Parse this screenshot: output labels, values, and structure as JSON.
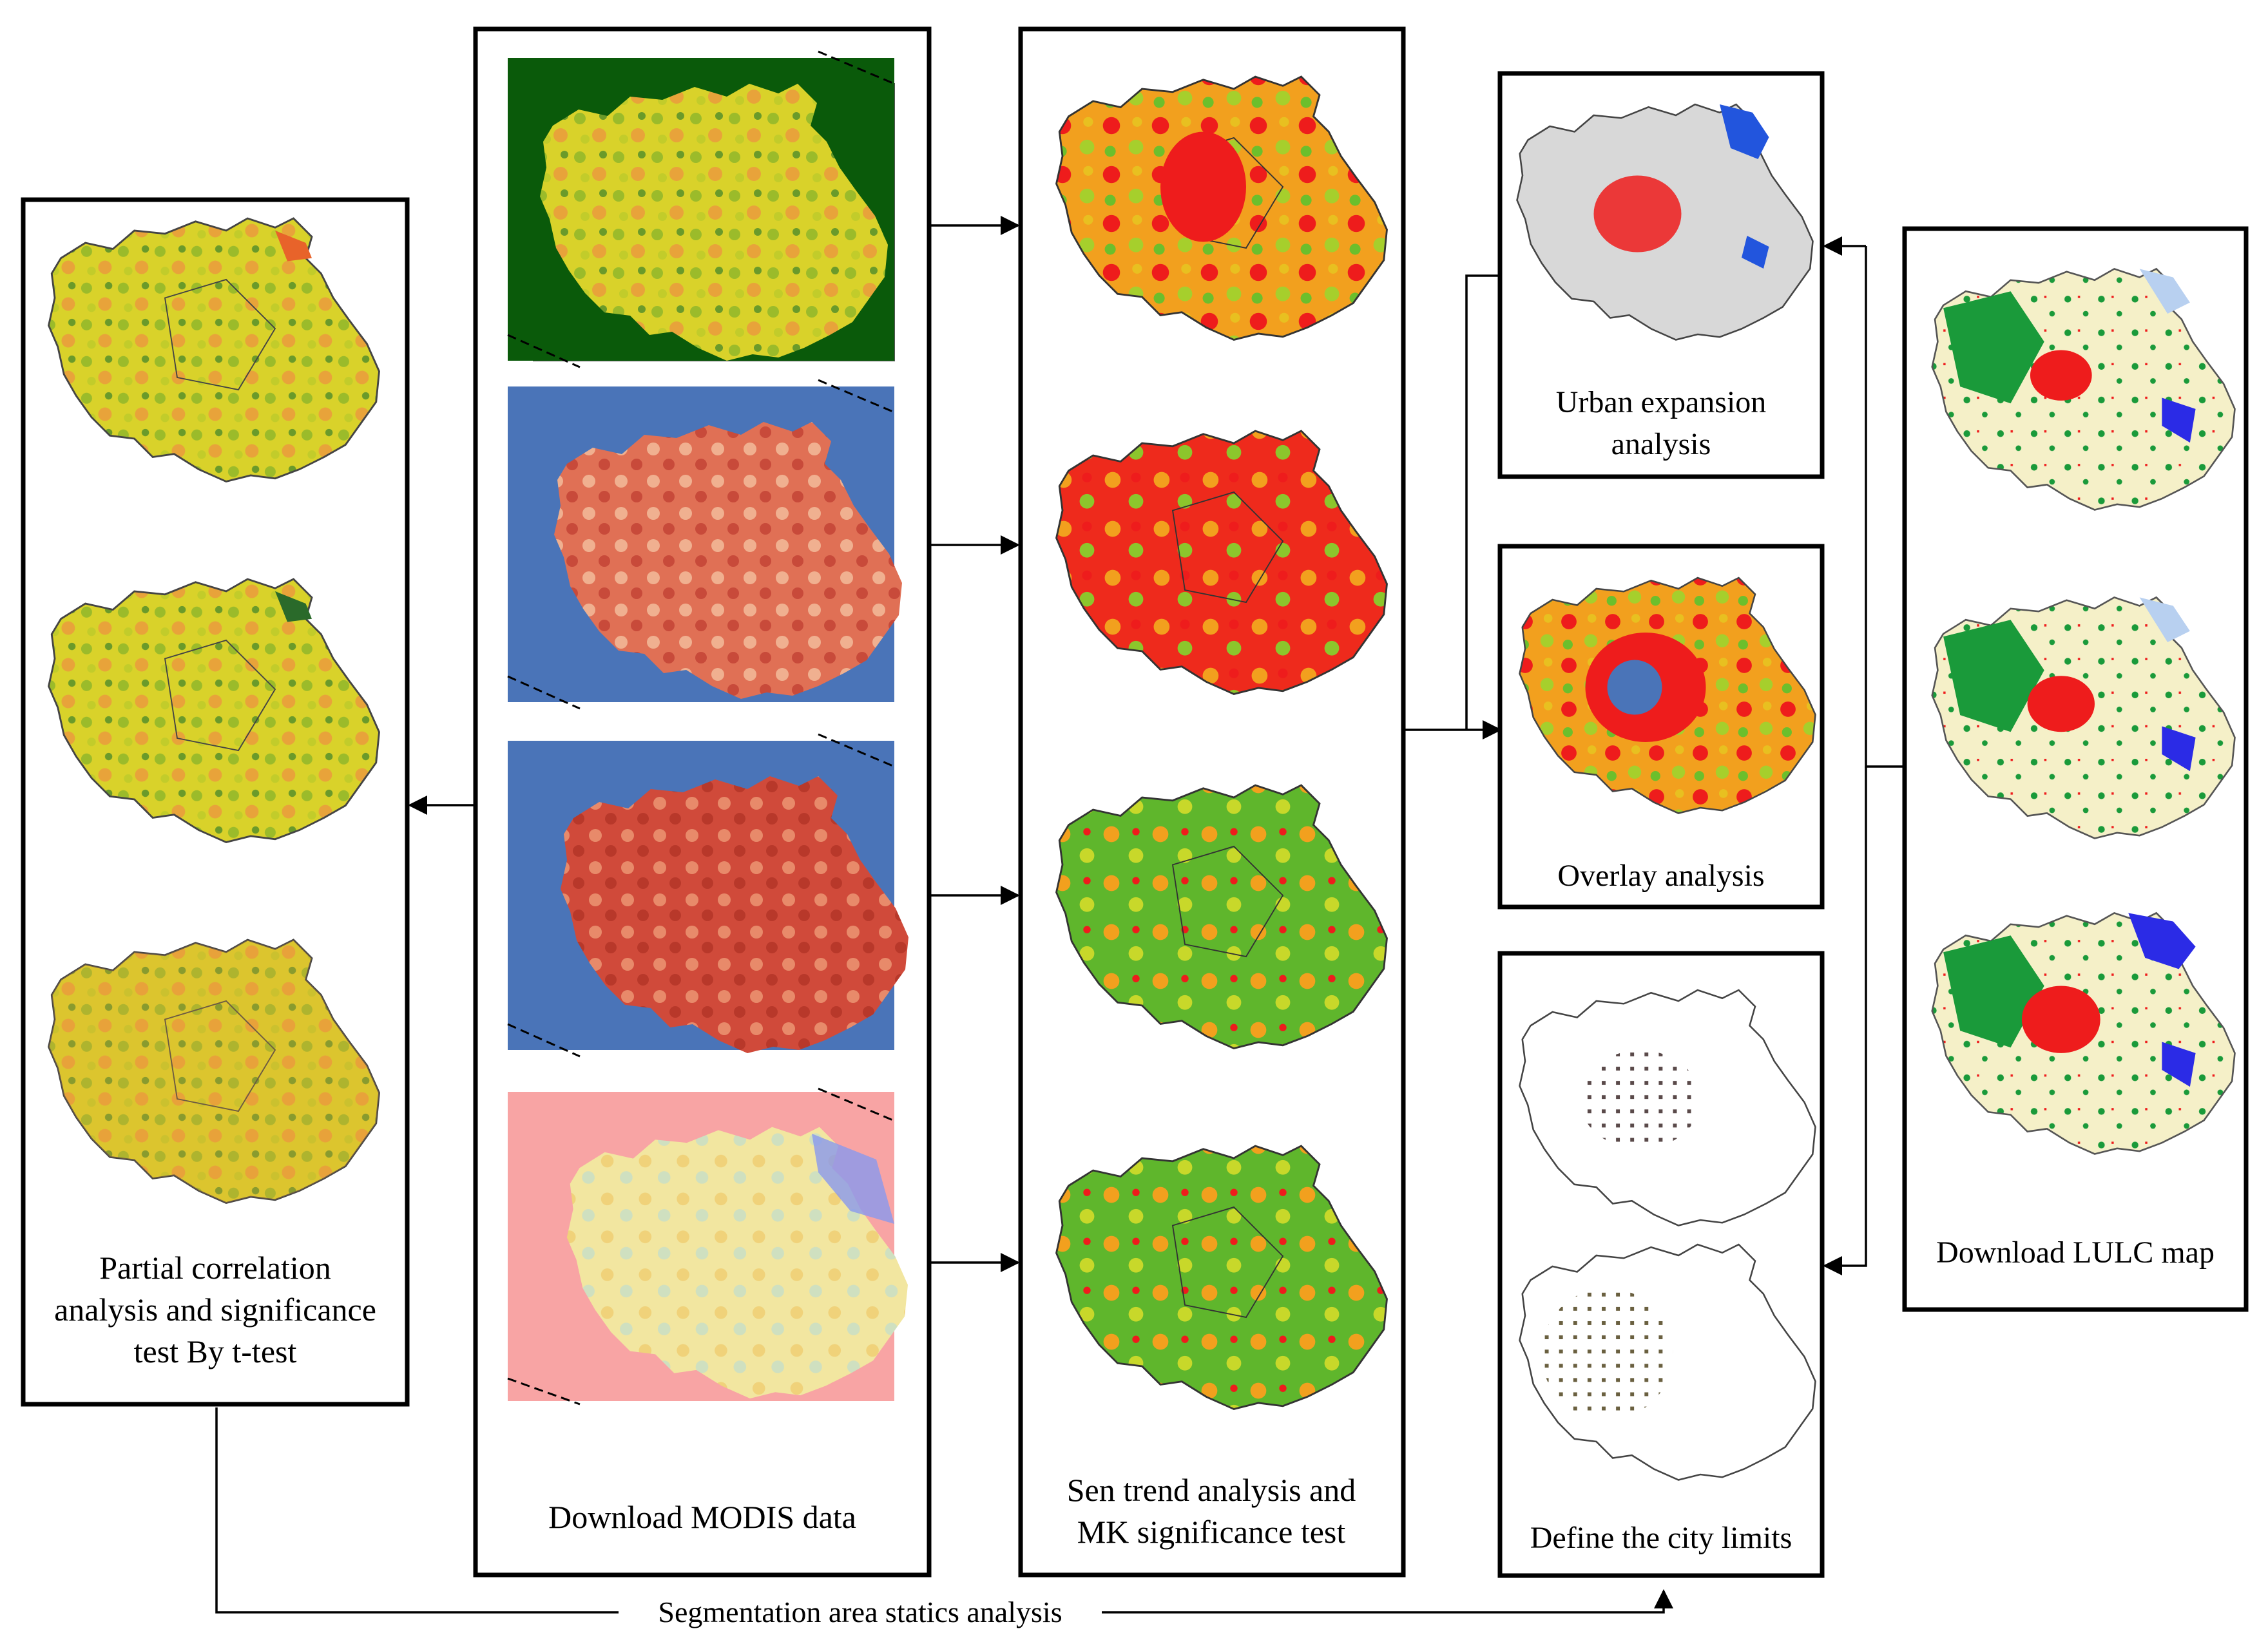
{
  "boxes": {
    "partial_correlation": {
      "label_lines": [
        "Partial correlation",
        "analysis and significance",
        "test By t-test"
      ]
    },
    "modis": {
      "label_lines": [
        "Download MODIS data"
      ]
    },
    "sen_trend": {
      "label_lines": [
        "Sen trend analysis and",
        "MK significance test"
      ]
    },
    "urban_expansion": {
      "label_lines": [
        "Urban expansion",
        "analysis"
      ]
    },
    "overlay": {
      "label_lines": [
        "Overlay analysis"
      ]
    },
    "city_limits": {
      "label_lines": [
        "Define the city limits"
      ]
    },
    "lulc": {
      "label_lines": [
        "Download LULC map"
      ]
    }
  },
  "connector": {
    "bottom_label": "Segmentation area statics analysis"
  },
  "colors": {
    "modis_ndvi_bg": "#0a5a0a",
    "modis_blue_bg": "#4a74b8",
    "modis_pink_bg": "#f8a4a4",
    "trend_orange": "#f29a1e",
    "trend_red": "#ee1c1c",
    "trend_green": "#5fb62c",
    "lulc_cream": "#f5f0c8",
    "lulc_red": "#ee1c1c",
    "lulc_blue": "#2b2be6",
    "lulc_green": "#1a9a3a"
  }
}
